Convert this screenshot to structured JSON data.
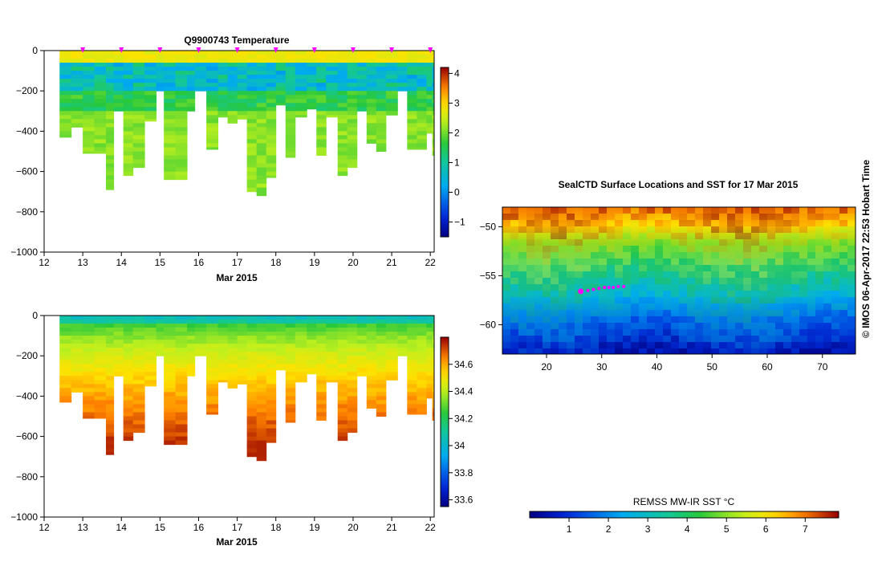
{
  "chart_data": [
    {
      "type": "heatmap",
      "title": "Q9900743  Temperature",
      "xlabel": "Mar 2015",
      "ylabel": "",
      "x_ticks": [
        "12",
        "13",
        "14",
        "15",
        "16",
        "17",
        "18",
        "19",
        "20",
        "21",
        "22"
      ],
      "y_ticks": [
        "0",
        "−200",
        "−400",
        "−600",
        "−800",
        "−1000"
      ],
      "xlim": [
        12,
        22.1
      ],
      "ylim": [
        -1000,
        0
      ],
      "profile_days": [
        12.4,
        12.7,
        13.0,
        13.3,
        13.6,
        13.8,
        14.05,
        14.3,
        14.6,
        14.9,
        15.1,
        15.4,
        15.7,
        15.9,
        16.2,
        16.5,
        16.75,
        17.0,
        17.25,
        17.5,
        17.75,
        18.0,
        18.25,
        18.5,
        18.8,
        19.05,
        19.3,
        19.6,
        19.85,
        20.1,
        20.35,
        20.6,
        20.85,
        21.15,
        21.4,
        21.65,
        21.9,
        22.05
      ],
      "profile_max_depth": [
        430,
        380,
        510,
        510,
        690,
        300,
        620,
        580,
        350,
        200,
        640,
        640,
        300,
        200,
        490,
        330,
        360,
        340,
        700,
        720,
        630,
        270,
        530,
        330,
        290,
        520,
        330,
        620,
        580,
        300,
        460,
        500,
        320,
        200,
        490,
        490,
        410,
        520
      ],
      "colorbar": {
        "label": "",
        "ticks": [
          "−1",
          "0",
          "1",
          "2",
          "3",
          "4"
        ],
        "min": -1.5,
        "max": 4.2
      },
      "markers": {
        "color": "#ff00ff",
        "days": [
          13,
          14,
          15,
          16,
          17,
          18,
          19,
          20,
          21,
          22
        ]
      }
    },
    {
      "type": "heatmap",
      "title": "",
      "xlabel": "Mar 2015",
      "ylabel": "",
      "x_ticks": [
        "12",
        "13",
        "14",
        "15",
        "16",
        "17",
        "18",
        "19",
        "20",
        "21",
        "22"
      ],
      "y_ticks": [
        "0",
        "−200",
        "−400",
        "−600",
        "−800",
        "−1000"
      ],
      "xlim": [
        12,
        22.1
      ],
      "ylim": [
        -1000,
        0
      ],
      "colorbar": {
        "label": "",
        "ticks": [
          "33.6",
          "33.8",
          "34",
          "34.2",
          "34.4",
          "34.6"
        ],
        "min": 33.55,
        "max": 34.8
      }
    },
    {
      "type": "heatmap",
      "title": "SealCTD Surface Locations and SST for 17 Mar 2015",
      "xlabel": "",
      "ylabel": "",
      "x_ticks": [
        "20",
        "30",
        "40",
        "50",
        "60",
        "70"
      ],
      "y_ticks": [
        "−50",
        "−55",
        "−60"
      ],
      "xlim": [
        12,
        76
      ],
      "ylim": [
        -63,
        -48
      ],
      "track": {
        "color": "#ff00ff",
        "lon": [
          26.2,
          27.5,
          28.5,
          29.5,
          30.5,
          31.3,
          32.1,
          33.0,
          34.0
        ],
        "lat": [
          -56.6,
          -56.5,
          -56.4,
          -56.3,
          -56.2,
          -56.2,
          -56.2,
          -56.1,
          -56.1
        ]
      },
      "colorbar": {
        "label": "REMSS MW-IR SST °C",
        "ticks": [
          "1",
          "2",
          "3",
          "4",
          "5",
          "6",
          "7"
        ],
        "min": 0,
        "max": 7.85
      }
    }
  ],
  "credit": "© IMOS 06-Apr-2017 22:53 Hobart Time",
  "colors": {
    "marker": "#ff00ff"
  }
}
